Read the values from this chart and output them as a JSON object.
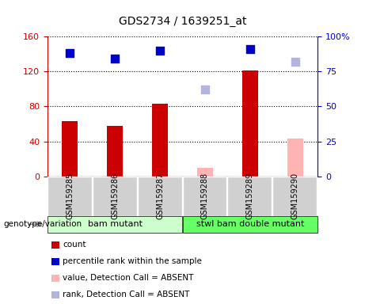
{
  "title": "GDS2734 / 1639251_at",
  "samples": [
    "GSM159285",
    "GSM159286",
    "GSM159287",
    "GSM159288",
    "GSM159289",
    "GSM159290"
  ],
  "count_values": [
    63,
    58,
    83,
    null,
    121,
    null
  ],
  "count_absent_values": [
    null,
    null,
    null,
    10,
    null,
    43
  ],
  "rank_values": [
    88,
    84,
    90,
    null,
    91,
    null
  ],
  "rank_absent_values": [
    null,
    null,
    null,
    62,
    null,
    82
  ],
  "group1_label": "bam mutant",
  "group2_label": "stwl bam double mutant",
  "ylim_left": [
    0,
    160
  ],
  "ylim_right": [
    0,
    100
  ],
  "yticks_left": [
    0,
    40,
    80,
    120,
    160
  ],
  "yticks_right": [
    0,
    25,
    50,
    75,
    100
  ],
  "yticklabels_left": [
    "0",
    "40",
    "80",
    "120",
    "160"
  ],
  "yticklabels_right": [
    "0",
    "25",
    "50",
    "75",
    "100%"
  ],
  "bar_width": 0.35,
  "bar_color_present": "#cc0000",
  "bar_color_absent": "#ffb3b3",
  "dot_color_present": "#0000cc",
  "dot_color_absent": "#b3b3dd",
  "group1_bg": "#ccffcc",
  "group2_bg": "#66ff66",
  "dot_size": 60,
  "legend_items": [
    "count",
    "percentile rank within the sample",
    "value, Detection Call = ABSENT",
    "rank, Detection Call = ABSENT"
  ],
  "legend_colors": [
    "#cc0000",
    "#0000cc",
    "#ffb3b3",
    "#b3b3dd"
  ],
  "genotype_label": "genotype/variation",
  "arrow_color": "#999999"
}
